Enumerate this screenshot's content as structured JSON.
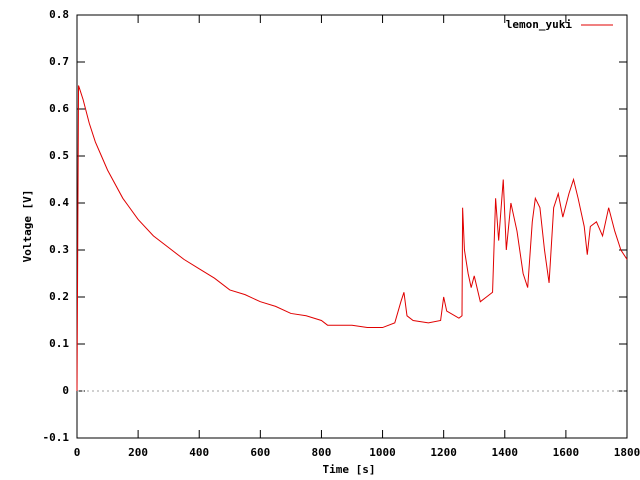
{
  "chart_data": {
    "type": "line",
    "xlabel": "Time [s]",
    "ylabel": "Voltage [V]",
    "x": [
      0,
      5,
      10,
      20,
      40,
      60,
      80,
      100,
      150,
      200,
      250,
      300,
      350,
      400,
      450,
      500,
      550,
      600,
      650,
      700,
      750,
      800,
      820,
      900,
      950,
      1000,
      1040,
      1060,
      1070,
      1080,
      1100,
      1150,
      1190,
      1200,
      1210,
      1250,
      1260,
      1262,
      1268,
      1280,
      1290,
      1300,
      1320,
      1340,
      1360,
      1370,
      1380,
      1395,
      1405,
      1420,
      1440,
      1460,
      1475,
      1490,
      1500,
      1515,
      1530,
      1545,
      1560,
      1575,
      1590,
      1610,
      1625,
      1640,
      1660,
      1670,
      1680,
      1700,
      1720,
      1740,
      1760,
      1780,
      1800
    ],
    "series": [
      {
        "name": "lemon_yuki",
        "color": "#e00000",
        "values": [
          0.0,
          0.65,
          0.64,
          0.62,
          0.57,
          0.53,
          0.5,
          0.47,
          0.41,
          0.365,
          0.33,
          0.305,
          0.28,
          0.26,
          0.24,
          0.215,
          0.205,
          0.19,
          0.18,
          0.165,
          0.16,
          0.15,
          0.14,
          0.14,
          0.135,
          0.135,
          0.145,
          0.19,
          0.21,
          0.16,
          0.15,
          0.145,
          0.15,
          0.2,
          0.17,
          0.155,
          0.16,
          0.39,
          0.3,
          0.25,
          0.22,
          0.245,
          0.19,
          0.2,
          0.21,
          0.41,
          0.32,
          0.45,
          0.3,
          0.4,
          0.34,
          0.25,
          0.22,
          0.36,
          0.41,
          0.39,
          0.3,
          0.23,
          0.39,
          0.42,
          0.37,
          0.42,
          0.45,
          0.41,
          0.35,
          0.29,
          0.35,
          0.36,
          0.33,
          0.39,
          0.34,
          0.3,
          0.28
        ]
      }
    ],
    "xlim": [
      0,
      1800
    ],
    "xticks": [
      0,
      200,
      400,
      600,
      800,
      1000,
      1200,
      1400,
      1600,
      1800
    ],
    "ylim": [
      -0.1,
      0.8
    ],
    "yticks": [
      -0.1,
      0,
      0.1,
      0.2,
      0.3,
      0.4,
      0.5,
      0.6,
      0.7,
      0.8
    ],
    "zero_axis": true,
    "legend": "top-right"
  }
}
